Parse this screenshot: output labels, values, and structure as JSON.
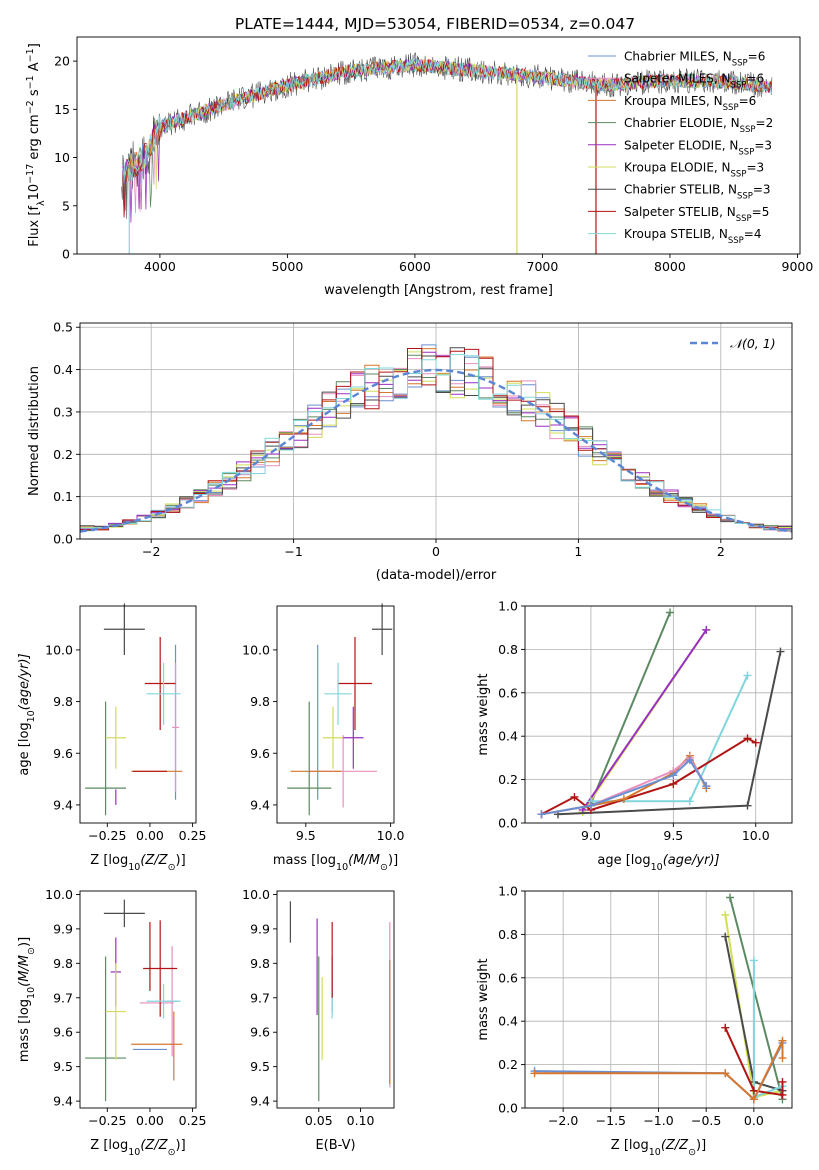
{
  "figure": {
    "title": "PLATE=1444, MJD=53054, FIBERID=0534, z=0.047"
  },
  "series": [
    {
      "name": "Chabrier MILES",
      "sub": "SSP",
      "n": "6",
      "color": "#6a8fd1"
    },
    {
      "name": "Salpeter MILES",
      "sub": "SSP",
      "n": "6",
      "color": "#e88fc0"
    },
    {
      "name": "Kroupa MILES",
      "sub": "SSP",
      "n": "6",
      "color": "#d6772d"
    },
    {
      "name": "Chabrier ELODIE",
      "sub": "SSP",
      "n": "2",
      "color": "#5b8a62"
    },
    {
      "name": "Salpeter ELODIE",
      "sub": "SSP",
      "n": "3",
      "color": "#9a2fc0"
    },
    {
      "name": "Kroupa ELODIE",
      "sub": "SSP",
      "n": "3",
      "color": "#d2dd58"
    },
    {
      "name": "Chabrier STELIB",
      "sub": "SSP",
      "n": "3",
      "color": "#4a4a4a"
    },
    {
      "name": "Salpeter STELIB",
      "sub": "SSP",
      "n": "5",
      "color": "#b21515"
    },
    {
      "name": "Kroupa STELIB",
      "sub": "SSP",
      "n": "4",
      "color": "#7fd6dc"
    }
  ],
  "chart_data": [
    {
      "id": "spectrum",
      "type": "line",
      "xlabel": "wavelength [Angstrom, rest frame]",
      "ylabel_parts": [
        "Flux [f",
        "λ",
        "10",
        "−17",
        " erg cm",
        "−2",
        " s",
        "−1",
        " A",
        "−1",
        "]"
      ],
      "xlim": [
        3350,
        9020
      ],
      "ylim": [
        0,
        22.5
      ],
      "xticks": [
        4000,
        5000,
        6000,
        7000,
        8000,
        9000
      ],
      "yticks": [
        0,
        5,
        10,
        15,
        20
      ],
      "data_range": [
        3700,
        8800
      ],
      "profile": [
        [
          3700,
          8.0
        ],
        [
          3900,
          10.5
        ],
        [
          4000,
          13.2
        ],
        [
          4500,
          15.5
        ],
        [
          5000,
          17.5
        ],
        [
          5500,
          19.0
        ],
        [
          6000,
          19.6
        ],
        [
          6500,
          19.0
        ],
        [
          7000,
          18.3
        ],
        [
          7500,
          17.5
        ],
        [
          8000,
          18.0
        ],
        [
          8500,
          17.8
        ],
        [
          8800,
          17.3
        ]
      ],
      "dropouts": [
        [
          6800,
          0
        ],
        [
          7420,
          0
        ],
        [
          3760,
          0
        ]
      ],
      "grid": false
    },
    {
      "id": "residuals",
      "type": "step-histogram",
      "xlabel": "(data-model)/error",
      "ylabel": "Normed distribution",
      "xlim": [
        -2.5,
        2.5
      ],
      "ylim": [
        0,
        0.51
      ],
      "xticks": [
        -2,
        -1,
        0,
        1,
        2
      ],
      "yticks": [
        0,
        0.1,
        0.2,
        0.3,
        0.4,
        0.5
      ],
      "bin_width": 0.1,
      "legend": "𝒩(0, 1)",
      "reference_color": "#5b86d6",
      "grid": true
    },
    {
      "id": "z-age",
      "type": "errorbar",
      "xlabel": [
        "Z [log",
        "10",
        "(Z/Z",
        "⊙",
        ")]"
      ],
      "ylabel": [
        "age  [log",
        "10",
        "(age/yr)]"
      ],
      "xlim": [
        -0.41,
        0.27
      ],
      "ylim": [
        9.33,
        10.17
      ],
      "xticks": [
        -0.25,
        0,
        0.25
      ],
      "xticklabels": [
        "−0.25",
        "0.00",
        "0.25"
      ],
      "yticks": [
        9.4,
        9.6,
        9.8,
        10.0
      ],
      "yticklabels": [
        "9.4",
        "9.6",
        "9.8",
        "10.0"
      ],
      "points": [
        {
          "s": 0,
          "x": 0.15,
          "y": 9.72,
          "xe": 0.0,
          "ye": 0.3
        },
        {
          "s": 1,
          "x": 0.15,
          "y": 9.7,
          "xe": 0.02,
          "ye": 0.25
        },
        {
          "s": 2,
          "x": 0.04,
          "y": 9.53,
          "xe": 0.15,
          "ye": 0.0
        },
        {
          "s": 3,
          "x": -0.26,
          "y": 9.465,
          "xe": 0.12,
          "ye": 0.0
        },
        {
          "s": 3,
          "x": -0.26,
          "y": 9.58,
          "xe": 0.0,
          "ye": 0.22
        },
        {
          "s": 4,
          "x": -0.2,
          "y": 9.43,
          "xe": 0.0,
          "ye": 0.03
        },
        {
          "s": 5,
          "x": -0.2,
          "y": 9.66,
          "xe": 0.06,
          "ye": 0.12
        },
        {
          "s": 6,
          "x": -0.15,
          "y": 10.08,
          "xe": 0.12,
          "ye": 0.1
        },
        {
          "s": 7,
          "x": 0.0,
          "y": 9.53,
          "xe": 0.1,
          "ye": 0.0
        },
        {
          "s": 7,
          "x": 0.06,
          "y": 9.87,
          "xe": 0.09,
          "ye": 0.18
        },
        {
          "s": 8,
          "x": 0.08,
          "y": 9.83,
          "xe": 0.1,
          "ye": 0.12
        }
      ]
    },
    {
      "id": "mass-age",
      "type": "errorbar",
      "xlabel": [
        "mass [log",
        "10",
        "(M/M",
        "⊙",
        ")]"
      ],
      "ylabel": [],
      "xlim": [
        9.33,
        10.02
      ],
      "ylim": [
        9.33,
        10.17
      ],
      "xticks": [
        9.5,
        10.0
      ],
      "xticklabels": [
        "9.5",
        "10.0"
      ],
      "yticks": [
        9.4,
        9.6,
        9.8,
        10.0
      ],
      "yticklabels": [
        "9.4",
        "9.6",
        "9.8",
        "10.0"
      ],
      "points": [
        {
          "s": 0,
          "x": 9.57,
          "y": 9.72,
          "xe": 0.0,
          "ye": 0.3
        },
        {
          "s": 1,
          "x": 9.72,
          "y": 9.53,
          "xe": 0.2,
          "ye": 0.14
        },
        {
          "s": 2,
          "x": 9.56,
          "y": 9.53,
          "xe": 0.15,
          "ye": 0.0
        },
        {
          "s": 3,
          "x": 9.52,
          "y": 9.465,
          "xe": 0.13,
          "ye": 0.0
        },
        {
          "s": 3,
          "x": 9.52,
          "y": 9.58,
          "xe": 0.0,
          "ye": 0.22
        },
        {
          "s": 4,
          "x": 9.78,
          "y": 9.66,
          "xe": 0.06,
          "ye": 0.12
        },
        {
          "s": 5,
          "x": 9.66,
          "y": 9.66,
          "xe": 0.06,
          "ye": 0.12
        },
        {
          "s": 6,
          "x": 9.95,
          "y": 10.08,
          "xe": 0.06,
          "ye": 0.1
        },
        {
          "s": 7,
          "x": 9.79,
          "y": 9.87,
          "xe": 0.1,
          "ye": 0.18
        },
        {
          "s": 8,
          "x": 9.69,
          "y": 9.83,
          "xe": 0.08,
          "ye": 0.12
        }
      ]
    },
    {
      "id": "age-weight",
      "type": "line",
      "xlabel": [
        "age  [log",
        "10",
        "(age/yr)]"
      ],
      "ylabel": [
        "mass weight"
      ],
      "xlim": [
        8.6,
        10.22
      ],
      "ylim": [
        0,
        1.0
      ],
      "xticks": [
        8.5,
        9.0,
        9.5,
        10.0
      ],
      "xticklabels": [
        "8.5",
        "9.0",
        "9.5",
        "10.0"
      ],
      "yticks": [
        0,
        0.2,
        0.4,
        0.6,
        0.8,
        1.0
      ],
      "yticklabels": [
        "0.0",
        "0.2",
        "0.4",
        "0.6",
        "0.8",
        "1.0"
      ],
      "grid": true,
      "lines": [
        {
          "s": 3,
          "pts": [
            [
              9.0,
              0.09
            ],
            [
              9.48,
              0.97
            ]
          ]
        },
        {
          "s": 5,
          "pts": [
            [
              8.95,
              0.05
            ],
            [
              9.7,
              0.89
            ]
          ]
        },
        {
          "s": 4,
          "pts": [
            [
              8.95,
              0.06
            ],
            [
              9.7,
              0.89
            ]
          ]
        },
        {
          "s": 6,
          "pts": [
            [
              8.8,
              0.04
            ],
            [
              9.95,
              0.08
            ],
            [
              10.15,
              0.79
            ]
          ]
        },
        {
          "s": 8,
          "pts": [
            [
              9.0,
              0.1
            ],
            [
              9.6,
              0.1
            ],
            [
              9.95,
              0.68
            ]
          ]
        },
        {
          "s": 7,
          "pts": [
            [
              8.7,
              0.04
            ],
            [
              8.9,
              0.12
            ],
            [
              9.0,
              0.06
            ],
            [
              9.5,
              0.18
            ],
            [
              9.95,
              0.39
            ],
            [
              10.0,
              0.37
            ]
          ]
        },
        {
          "s": 2,
          "pts": [
            [
              8.7,
              0.04
            ],
            [
              9.0,
              0.08
            ],
            [
              9.2,
              0.11
            ],
            [
              9.5,
              0.23
            ],
            [
              9.6,
              0.31
            ],
            [
              9.7,
              0.16
            ]
          ]
        },
        {
          "s": 1,
          "pts": [
            [
              8.7,
              0.04
            ],
            [
              9.0,
              0.08
            ],
            [
              9.5,
              0.24
            ],
            [
              9.6,
              0.3
            ],
            [
              9.7,
              0.17
            ]
          ]
        },
        {
          "s": 0,
          "pts": [
            [
              8.7,
              0.04
            ],
            [
              9.0,
              0.08
            ],
            [
              9.5,
              0.22
            ],
            [
              9.6,
              0.29
            ],
            [
              9.7,
              0.17
            ]
          ]
        }
      ]
    },
    {
      "id": "z-mass",
      "type": "errorbar",
      "xlabel": [
        "Z [log",
        "10",
        "(Z/Z",
        "⊙",
        ")]"
      ],
      "ylabel": [
        "mass [log",
        "10",
        "(M/M",
        "⊙",
        ")]"
      ],
      "xlim": [
        -0.41,
        0.27
      ],
      "ylim": [
        9.38,
        10.01
      ],
      "xticks": [
        -0.25,
        0,
        0.25
      ],
      "xticklabels": [
        "−0.25",
        "0.00",
        "0.25"
      ],
      "yticks": [
        9.4,
        9.5,
        9.6,
        9.7,
        9.8,
        9.9,
        10.0
      ],
      "yticklabels": [
        "9.4",
        "9.5",
        "9.6",
        "9.7",
        "9.8",
        "9.9",
        "10.0"
      ],
      "points": [
        {
          "s": 0,
          "x": 0.0,
          "y": 9.55,
          "xe": 0.1,
          "ye": 0.0
        },
        {
          "s": 1,
          "x": 0.13,
          "y": 9.69,
          "xe": 0.03,
          "ye": 0.16
        },
        {
          "s": 1,
          "x": 0.04,
          "y": 9.685,
          "xe": 0.1,
          "ye": 0.0
        },
        {
          "s": 2,
          "x": 0.04,
          "y": 9.565,
          "xe": 0.15,
          "ye": 0.0
        },
        {
          "s": 2,
          "x": 0.14,
          "y": 9.56,
          "xe": 0.0,
          "ye": 0.1
        },
        {
          "s": 3,
          "x": -0.26,
          "y": 9.525,
          "xe": 0.12,
          "ye": 0.0
        },
        {
          "s": 3,
          "x": -0.26,
          "y": 9.61,
          "xe": 0.0,
          "ye": 0.21
        },
        {
          "s": 4,
          "x": -0.2,
          "y": 9.775,
          "xe": 0.03,
          "ye": 0.1
        },
        {
          "s": 5,
          "x": -0.2,
          "y": 9.66,
          "xe": 0.06,
          "ye": 0.14
        },
        {
          "s": 6,
          "x": -0.15,
          "y": 9.945,
          "xe": 0.12,
          "ye": 0.04
        },
        {
          "s": 7,
          "x": 0.06,
          "y": 9.785,
          "xe": 0.1,
          "ye": 0.14
        },
        {
          "s": 7,
          "x": 0.0,
          "y": 9.82,
          "xe": 0.0,
          "ye": 0.1
        },
        {
          "s": 8,
          "x": 0.08,
          "y": 9.69,
          "xe": 0.1,
          "ye": 0.05
        }
      ]
    },
    {
      "id": "ebv-mass",
      "type": "errorbar",
      "xlabel": [
        "E(B-V)"
      ],
      "ylabel": [],
      "xlim": [
        0.0,
        0.14
      ],
      "ylim": [
        9.38,
        10.01
      ],
      "xticks": [
        0.05,
        0.1
      ],
      "xticklabels": [
        "0.05",
        "0.10"
      ],
      "yticks": [
        9.4,
        9.5,
        9.6,
        9.7,
        9.8,
        9.9,
        10.0
      ],
      "yticklabels": [
        "9.4",
        "9.5",
        "9.6",
        "9.7",
        "9.8",
        "9.9",
        "10.0"
      ],
      "points": [
        {
          "s": 6,
          "x": 0.016,
          "y": 9.92,
          "xe": 0.0,
          "ye": 0.06
        },
        {
          "s": 3,
          "x": 0.05,
          "y": 9.61,
          "xe": 0.0,
          "ye": 0.21
        },
        {
          "s": 4,
          "x": 0.048,
          "y": 9.79,
          "xe": 0.0,
          "ye": 0.14
        },
        {
          "s": 5,
          "x": 0.054,
          "y": 9.64,
          "xe": 0.0,
          "ye": 0.12
        },
        {
          "s": 0,
          "x": 0.066,
          "y": 9.74,
          "xe": 0.0,
          "ye": 0.08
        },
        {
          "s": 8,
          "x": 0.066,
          "y": 9.7,
          "xe": 0.0,
          "ye": 0.06
        },
        {
          "s": 7,
          "x": 0.066,
          "y": 9.81,
          "xe": 0.0,
          "ye": 0.11
        },
        {
          "s": 1,
          "x": 0.135,
          "y": 9.68,
          "xe": 0.0,
          "ye": 0.24
        },
        {
          "s": 2,
          "x": 0.135,
          "y": 9.63,
          "xe": 0.0,
          "ye": 0.18
        }
      ]
    },
    {
      "id": "z-weight",
      "type": "line",
      "xlabel": [
        "Z [log",
        "10",
        "(Z/Z",
        "⊙",
        ")]"
      ],
      "ylabel": [
        "mass weight"
      ],
      "xlim": [
        -2.4,
        0.4
      ],
      "ylim": [
        0,
        1.0
      ],
      "xticks": [
        -2.0,
        -1.5,
        -1.0,
        -0.5,
        0.0
      ],
      "xticklabels": [
        "−2.0",
        "−1.5",
        "−1.0",
        "−0.5",
        "0.0"
      ],
      "yticks": [
        0,
        0.2,
        0.4,
        0.6,
        0.8,
        1.0
      ],
      "yticklabels": [
        "0.0",
        "0.2",
        "0.4",
        "0.6",
        "0.8",
        "1.0"
      ],
      "grid": true,
      "lines": [
        {
          "s": 3,
          "pts": [
            [
              -0.25,
              0.97
            ],
            [
              0.3,
              0.04
            ]
          ]
        },
        {
          "s": 5,
          "pts": [
            [
              -0.3,
              0.89
            ],
            [
              0.0,
              0.05
            ],
            [
              0.3,
              0.08
            ]
          ]
        },
        {
          "s": 6,
          "pts": [
            [
              -0.3,
              0.79
            ],
            [
              0.0,
              0.12
            ],
            [
              0.3,
              0.08
            ]
          ]
        },
        {
          "s": 8,
          "pts": [
            [
              0.0,
              0.68
            ],
            [
              0.0,
              0.05
            ],
            [
              0.3,
              0.1
            ]
          ]
        },
        {
          "s": 7,
          "pts": [
            [
              -0.3,
              0.37
            ],
            [
              0.0,
              0.08
            ],
            [
              0.3,
              0.06
            ],
            [
              0.3,
              0.12
            ]
          ]
        },
        {
          "s": 0,
          "pts": [
            [
              -2.3,
              0.17
            ],
            [
              -0.3,
              0.16
            ],
            [
              0.0,
              0.04
            ],
            [
              0.3,
              0.3
            ]
          ]
        },
        {
          "s": 2,
          "pts": [
            [
              -2.3,
              0.16
            ],
            [
              -0.3,
              0.16
            ],
            [
              0.0,
              0.04
            ],
            [
              0.3,
              0.31
            ],
            [
              0.3,
              0.23
            ]
          ]
        }
      ]
    }
  ]
}
